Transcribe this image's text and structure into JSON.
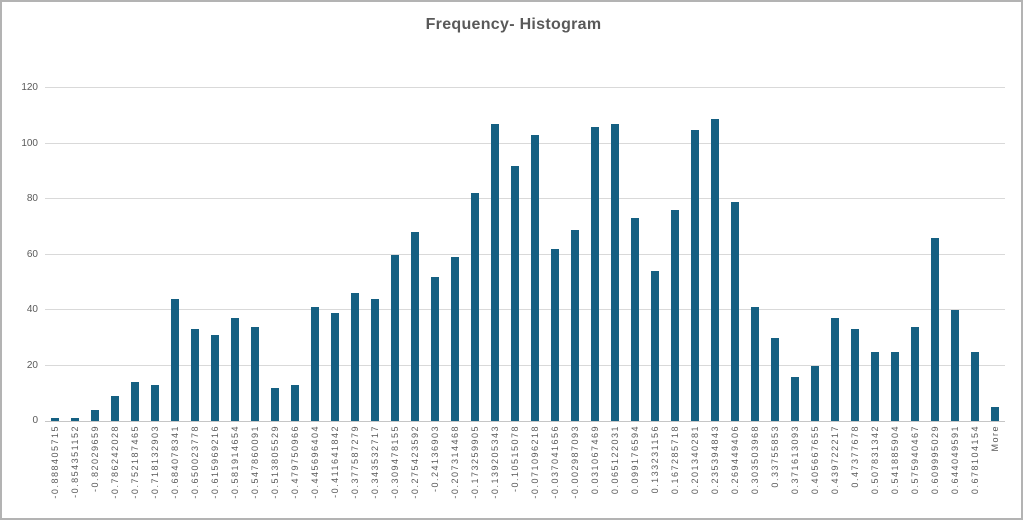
{
  "window": {
    "background": "#ffffff",
    "border_color": "#b3b3b3"
  },
  "chart_data": {
    "type": "bar",
    "title": "Frequency- Histogram",
    "categories": [
      "-0.888405715",
      "-0.854351152",
      "-0.82029659",
      "-0.786242028",
      "-0.752187465",
      "-0.718132903",
      "-0.684078341",
      "-0.650023778",
      "-0.615969216",
      "-0.581914654",
      "-0.547860091",
      "-0.513805529",
      "-0.479750966",
      "-0.445696404",
      "-0.411641842",
      "-0.377587279",
      "-0.343532717",
      "-0.309478155",
      "-0.275423592",
      "-0.24136903",
      "-0.207314468",
      "-0.173259905",
      "-0.139205343",
      "-0.10515078",
      "-0.071096218",
      "-0.037041656",
      "-0.002987093",
      "0.031067469",
      "0.065122031",
      "0.099176594",
      "0.133231156",
      "0.167285718",
      "0.201340281",
      "0.235394843",
      "0.269449406",
      "0.303503968",
      "0.33755853",
      "0.371613093",
      "0.405667655",
      "0.439722217",
      "0.47377678",
      "0.507831342",
      "0.541885904",
      "0.575940467",
      "0.609995029",
      "0.644049591",
      "0.678104154",
      "More"
    ],
    "values": [
      1,
      1,
      4,
      9,
      14,
      13,
      44,
      33,
      31,
      37,
      34,
      12,
      13,
      41,
      39,
      46,
      44,
      60,
      68,
      52,
      59,
      82,
      107,
      92,
      103,
      62,
      69,
      106,
      107,
      73,
      54,
      76,
      105,
      109,
      79,
      41,
      30,
      16,
      20,
      37,
      33,
      25,
      25,
      34,
      66,
      40,
      25,
      5
    ],
    "xlabel": "",
    "ylabel": "",
    "ylim": [
      0,
      120
    ],
    "yticks": [
      0,
      20,
      40,
      60,
      80,
      100,
      120
    ],
    "grid": "horizontal",
    "legend": "none",
    "bar_color": "#156082",
    "gridline_color": "#d9d9d9",
    "axis_line_color": "#c6c6c6",
    "axis_text_color": "#595959",
    "title_color": "#595959"
  }
}
